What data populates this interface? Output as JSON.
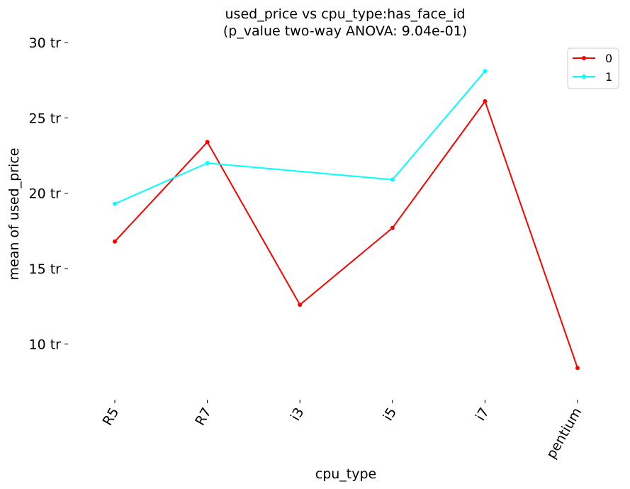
{
  "chart_data": {
    "type": "line",
    "title": "used_price vs cpu_type:has_face_id",
    "subtitle": "(p_value two-way ANOVA: 9.04e-01)",
    "xlabel": "cpu_type",
    "ylabel": "mean of used_price",
    "categories": [
      "R5",
      "R7",
      "i3",
      "i5",
      "i7",
      "pentium"
    ],
    "ylim": [
      6.3,
      30
    ],
    "yticks": [
      10,
      15,
      20,
      25,
      30
    ],
    "ytick_labels": [
      "10 tr",
      "15 tr",
      "20 tr",
      "25 tr",
      "30 tr"
    ],
    "grid": false,
    "legend_position": "top-right",
    "series": [
      {
        "name": "0",
        "color": "#ff0000",
        "values": [
          16.8,
          23.4,
          12.6,
          17.7,
          26.1,
          8.4
        ]
      },
      {
        "name": "1",
        "color": "#00ffff",
        "values": [
          19.3,
          22.0,
          null,
          20.9,
          28.1,
          null
        ]
      }
    ]
  }
}
